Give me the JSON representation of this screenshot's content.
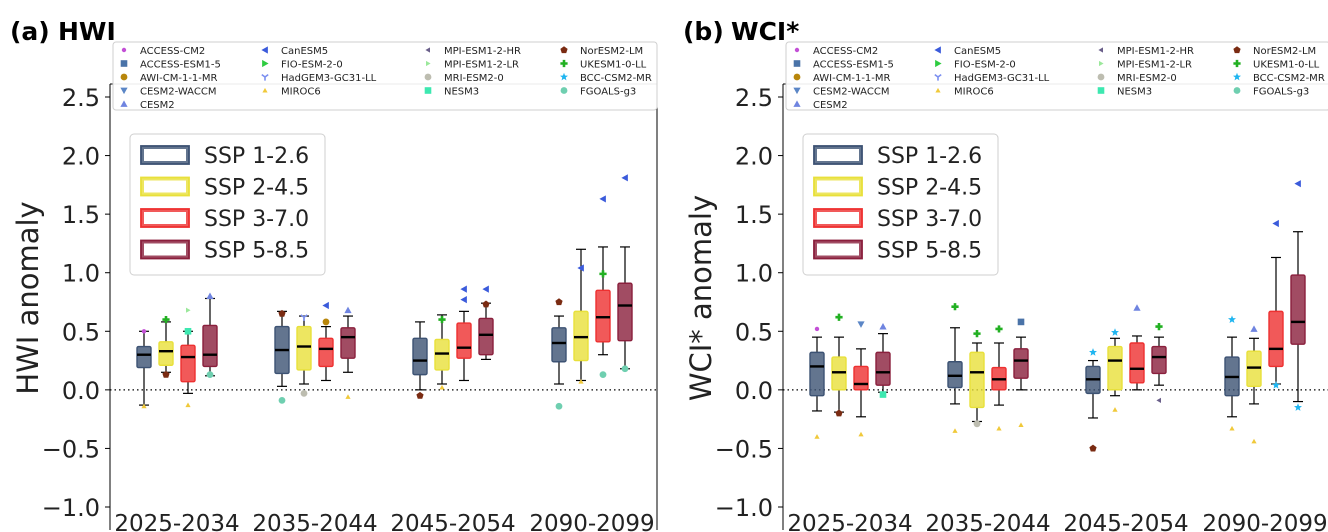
{
  "models": [
    {
      "name": "ACCESS-CM2",
      "color": "#c34fd6",
      "marker": "dot"
    },
    {
      "name": "ACCESS-ESM1-5",
      "color": "#4a73a8",
      "marker": "square"
    },
    {
      "name": "AWI-CM-1-1-MR",
      "color": "#b8860b",
      "marker": "circle"
    },
    {
      "name": "CESM2-WACCM",
      "color": "#5b86c6",
      "marker": "triangle-down"
    },
    {
      "name": "CESM2",
      "color": "#6f84e0",
      "marker": "triangle-up"
    },
    {
      "name": "CanESM5",
      "color": "#3b5bdb",
      "marker": "triangle-left"
    },
    {
      "name": "FIO-ESM-2-0",
      "color": "#2ecc40",
      "marker": "triangle-right"
    },
    {
      "name": "HadGEM3-GC31-LL",
      "color": "#7b8ff0",
      "marker": "tri-down"
    },
    {
      "name": "MIROC6",
      "color": "#f0c93a",
      "marker": "triangle-up-small"
    },
    {
      "name": "MPI-ESM1-2-HR",
      "color": "#6a5f8a",
      "marker": "triangle-left-small"
    },
    {
      "name": "MPI-ESM1-2-LR",
      "color": "#9be89b",
      "marker": "triangle-right-small"
    },
    {
      "name": "MRI-ESM2-0",
      "color": "#bdbdb0",
      "marker": "circle"
    },
    {
      "name": "NESM3",
      "color": "#3de8b0",
      "marker": "square"
    },
    {
      "name": "NorESM2-LM",
      "color": "#7a2b12",
      "marker": "pentagon"
    },
    {
      "name": "UKESM1-0-LL",
      "color": "#22b022",
      "marker": "plus"
    },
    {
      "name": "BCC-CSM2-MR",
      "color": "#1fb5f0",
      "marker": "star"
    },
    {
      "name": "FGOALS-g3",
      "color": "#6fcfb0",
      "marker": "circle"
    }
  ],
  "scenarios": [
    {
      "name": "SSP 1-2.6",
      "color": "#3c5273"
    },
    {
      "name": "SSP 2-4.5",
      "color": "#e8e03a"
    },
    {
      "name": "SSP 3-7.0",
      "color": "#ee3030"
    },
    {
      "name": "SSP 5-8.5",
      "color": "#8a1f3c"
    }
  ],
  "chart_data": [
    {
      "type": "box",
      "panel_label": "(a)",
      "title": "HWI",
      "ylabel": "HWI anomaly",
      "ylim": [
        -1.0,
        2.5
      ],
      "yticks": [
        2.5,
        2.0,
        1.5,
        1.0,
        0.5,
        0.0,
        -0.5,
        -1.0
      ],
      "ytick_labels": [
        "2.5",
        "2.0",
        "1.5",
        "1.0",
        "0.5",
        "0.0",
        "−0.5",
        "−1.0"
      ],
      "categories": [
        "2025-2034",
        "2035-2044",
        "2045-2054",
        "2090-2099"
      ],
      "zero_line": "dotted",
      "legend_placement": "upper-left",
      "boxes": [
        [
          {
            "q1": 0.19,
            "median": 0.3,
            "q3": 0.37,
            "wlo": -0.13,
            "whi": 0.5
          },
          {
            "q1": 0.21,
            "median": 0.33,
            "q3": 0.41,
            "wlo": 0.15,
            "whi": 0.58
          },
          {
            "q1": 0.07,
            "median": 0.28,
            "q3": 0.38,
            "wlo": -0.03,
            "whi": 0.5
          },
          {
            "q1": 0.2,
            "median": 0.3,
            "q3": 0.55,
            "wlo": 0.12,
            "whi": 0.78
          }
        ],
        [
          {
            "q1": 0.14,
            "median": 0.34,
            "q3": 0.54,
            "wlo": 0.03,
            "whi": 0.67
          },
          {
            "q1": 0.17,
            "median": 0.37,
            "q3": 0.54,
            "wlo": 0.05,
            "whi": 0.63
          },
          {
            "q1": 0.2,
            "median": 0.35,
            "q3": 0.44,
            "wlo": 0.08,
            "whi": 0.54
          },
          {
            "q1": 0.27,
            "median": 0.45,
            "q3": 0.53,
            "wlo": 0.15,
            "whi": 0.63
          }
        ],
        [
          {
            "q1": 0.13,
            "median": 0.25,
            "q3": 0.44,
            "wlo": 0.0,
            "whi": 0.58
          },
          {
            "q1": 0.17,
            "median": 0.31,
            "q3": 0.43,
            "wlo": 0.05,
            "whi": 0.64
          },
          {
            "q1": 0.27,
            "median": 0.36,
            "q3": 0.57,
            "wlo": 0.08,
            "whi": 0.67
          },
          {
            "q1": 0.3,
            "median": 0.47,
            "q3": 0.61,
            "wlo": 0.26,
            "whi": 0.74
          }
        ],
        [
          {
            "q1": 0.24,
            "median": 0.4,
            "q3": 0.53,
            "wlo": 0.05,
            "whi": 0.63
          },
          {
            "q1": 0.25,
            "median": 0.45,
            "q3": 0.67,
            "wlo": 0.08,
            "whi": 1.2
          },
          {
            "q1": 0.41,
            "median": 0.62,
            "q3": 0.85,
            "wlo": 0.3,
            "whi": 1.22
          },
          {
            "q1": 0.42,
            "median": 0.72,
            "q3": 0.91,
            "wlo": 0.18,
            "whi": 1.22
          }
        ]
      ],
      "points": [
        {
          "c": 0,
          "s": 0,
          "v": -0.14,
          "m": 8
        },
        {
          "c": 0,
          "s": 0,
          "v": 0.5,
          "m": 0
        },
        {
          "c": 0,
          "s": 1,
          "v": 0.6,
          "m": 14
        },
        {
          "c": 0,
          "s": 1,
          "v": 0.13,
          "m": 13
        },
        {
          "c": 0,
          "s": 2,
          "v": -0.13,
          "m": 8
        },
        {
          "c": 0,
          "s": 2,
          "v": 0.5,
          "m": 12
        },
        {
          "c": 0,
          "s": 2,
          "v": 0.68,
          "m": 10
        },
        {
          "c": 0,
          "s": 3,
          "v": 0.8,
          "m": 4
        },
        {
          "c": 0,
          "s": 3,
          "v": 0.13,
          "m": 16
        },
        {
          "c": 1,
          "s": 0,
          "v": 0.65,
          "m": 13
        },
        {
          "c": 1,
          "s": 0,
          "v": -0.09,
          "m": 16
        },
        {
          "c": 1,
          "s": 1,
          "v": 0.62,
          "m": 7
        },
        {
          "c": 1,
          "s": 1,
          "v": -0.03,
          "m": 11
        },
        {
          "c": 1,
          "s": 2,
          "v": 0.72,
          "m": 5
        },
        {
          "c": 1,
          "s": 2,
          "v": 0.58,
          "m": 2
        },
        {
          "c": 1,
          "s": 3,
          "v": 0.68,
          "m": 4
        },
        {
          "c": 1,
          "s": 3,
          "v": -0.06,
          "m": 8
        },
        {
          "c": 2,
          "s": 0,
          "v": -0.05,
          "m": 13
        },
        {
          "c": 2,
          "s": 1,
          "v": 0.6,
          "m": 14
        },
        {
          "c": 2,
          "s": 1,
          "v": 0.02,
          "m": 8
        },
        {
          "c": 2,
          "s": 2,
          "v": 0.77,
          "m": 5
        },
        {
          "c": 2,
          "s": 2,
          "v": 0.86,
          "m": 5
        },
        {
          "c": 2,
          "s": 3,
          "v": 0.86,
          "m": 5
        },
        {
          "c": 2,
          "s": 3,
          "v": 0.73,
          "m": 13
        },
        {
          "c": 3,
          "s": 0,
          "v": -0.14,
          "m": 16
        },
        {
          "c": 3,
          "s": 0,
          "v": 0.75,
          "m": 13
        },
        {
          "c": 3,
          "s": 1,
          "v": 1.04,
          "m": 5
        },
        {
          "c": 3,
          "s": 1,
          "v": 0.07,
          "m": 8
        },
        {
          "c": 3,
          "s": 2,
          "v": 1.63,
          "m": 5
        },
        {
          "c": 3,
          "s": 2,
          "v": 0.99,
          "m": 14
        },
        {
          "c": 3,
          "s": 2,
          "v": 0.13,
          "m": 16
        },
        {
          "c": 3,
          "s": 3,
          "v": 1.81,
          "m": 5
        },
        {
          "c": 3,
          "s": 3,
          "v": 0.18,
          "m": 16
        }
      ]
    },
    {
      "type": "box",
      "panel_label": "(b)",
      "title": "WCI*",
      "ylabel": "WCI* anomaly",
      "ylim": [
        -1.0,
        2.5
      ],
      "yticks": [
        2.5,
        2.0,
        1.5,
        1.0,
        0.5,
        0.0,
        -0.5,
        -1.0
      ],
      "ytick_labels": [
        "2.5",
        "2.0",
        "1.5",
        "1.0",
        "0.5",
        "0.0",
        "−0.5",
        "−1.0"
      ],
      "categories": [
        "2025-2034",
        "2035-2044",
        "2045-2054",
        "2090-2099"
      ],
      "zero_line": "dotted",
      "legend_placement": "upper-left",
      "boxes": [
        [
          {
            "q1": -0.05,
            "median": 0.2,
            "q3": 0.32,
            "wlo": -0.18,
            "whi": 0.45
          },
          {
            "q1": 0.0,
            "median": 0.15,
            "q3": 0.28,
            "wlo": -0.19,
            "whi": 0.45
          },
          {
            "q1": 0.0,
            "median": 0.05,
            "q3": 0.2,
            "wlo": -0.23,
            "whi": 0.35
          },
          {
            "q1": 0.04,
            "median": 0.15,
            "q3": 0.32,
            "wlo": -0.02,
            "whi": 0.48
          }
        ],
        [
          {
            "q1": 0.02,
            "median": 0.12,
            "q3": 0.24,
            "wlo": -0.12,
            "whi": 0.53
          },
          {
            "q1": -0.15,
            "median": 0.15,
            "q3": 0.32,
            "wlo": -0.27,
            "whi": 0.4
          },
          {
            "q1": 0.0,
            "median": 0.09,
            "q3": 0.19,
            "wlo": -0.13,
            "whi": 0.4
          },
          {
            "q1": 0.1,
            "median": 0.25,
            "q3": 0.35,
            "wlo": 0.0,
            "whi": 0.45
          }
        ],
        [
          {
            "q1": -0.03,
            "median": 0.09,
            "q3": 0.2,
            "wlo": -0.24,
            "whi": 0.25
          },
          {
            "q1": 0.0,
            "median": 0.25,
            "q3": 0.37,
            "wlo": -0.05,
            "whi": 0.44
          },
          {
            "q1": 0.06,
            "median": 0.18,
            "q3": 0.4,
            "wlo": 0.0,
            "whi": 0.46
          },
          {
            "q1": 0.14,
            "median": 0.28,
            "q3": 0.37,
            "wlo": 0.04,
            "whi": 0.45
          }
        ],
        [
          {
            "q1": -0.05,
            "median": 0.11,
            "q3": 0.28,
            "wlo": -0.23,
            "whi": 0.45
          },
          {
            "q1": 0.03,
            "median": 0.19,
            "q3": 0.33,
            "wlo": -0.12,
            "whi": 0.44
          },
          {
            "q1": 0.2,
            "median": 0.35,
            "q3": 0.67,
            "wlo": 0.05,
            "whi": 1.13
          },
          {
            "q1": 0.39,
            "median": 0.58,
            "q3": 0.98,
            "wlo": -0.1,
            "whi": 1.35
          }
        ]
      ],
      "points": [
        {
          "c": 0,
          "s": 0,
          "v": -0.4,
          "m": 8
        },
        {
          "c": 0,
          "s": 0,
          "v": 0.52,
          "m": 0
        },
        {
          "c": 0,
          "s": 1,
          "v": 0.62,
          "m": 14
        },
        {
          "c": 0,
          "s": 1,
          "v": -0.2,
          "m": 13
        },
        {
          "c": 0,
          "s": 2,
          "v": -0.38,
          "m": 8
        },
        {
          "c": 0,
          "s": 2,
          "v": 0.56,
          "m": 3
        },
        {
          "c": 0,
          "s": 3,
          "v": 0.54,
          "m": 4
        },
        {
          "c": 0,
          "s": 3,
          "v": -0.04,
          "m": 12
        },
        {
          "c": 1,
          "s": 0,
          "v": 0.71,
          "m": 14
        },
        {
          "c": 1,
          "s": 0,
          "v": -0.35,
          "m": 8
        },
        {
          "c": 1,
          "s": 1,
          "v": 0.48,
          "m": 14
        },
        {
          "c": 1,
          "s": 1,
          "v": -0.29,
          "m": 11
        },
        {
          "c": 1,
          "s": 2,
          "v": 0.52,
          "m": 14
        },
        {
          "c": 1,
          "s": 2,
          "v": -0.33,
          "m": 8
        },
        {
          "c": 1,
          "s": 3,
          "v": 0.58,
          "m": 1
        },
        {
          "c": 1,
          "s": 3,
          "v": -0.3,
          "m": 8
        },
        {
          "c": 2,
          "s": 0,
          "v": -0.5,
          "m": 13
        },
        {
          "c": 2,
          "s": 0,
          "v": 0.32,
          "m": 15
        },
        {
          "c": 2,
          "s": 1,
          "v": 0.49,
          "m": 15
        },
        {
          "c": 2,
          "s": 1,
          "v": -0.17,
          "m": 8
        },
        {
          "c": 2,
          "s": 2,
          "v": 0.7,
          "m": 4
        },
        {
          "c": 2,
          "s": 3,
          "v": 0.54,
          "m": 14
        },
        {
          "c": 2,
          "s": 3,
          "v": -0.09,
          "m": 9
        },
        {
          "c": 3,
          "s": 0,
          "v": 0.6,
          "m": 15
        },
        {
          "c": 3,
          "s": 0,
          "v": -0.33,
          "m": 8
        },
        {
          "c": 3,
          "s": 1,
          "v": 0.52,
          "m": 4
        },
        {
          "c": 3,
          "s": 1,
          "v": -0.44,
          "m": 8
        },
        {
          "c": 3,
          "s": 2,
          "v": 1.42,
          "m": 5
        },
        {
          "c": 3,
          "s": 2,
          "v": 0.04,
          "m": 15
        },
        {
          "c": 3,
          "s": 3,
          "v": 1.76,
          "m": 5
        },
        {
          "c": 3,
          "s": 3,
          "v": -0.15,
          "m": 15
        }
      ]
    }
  ]
}
